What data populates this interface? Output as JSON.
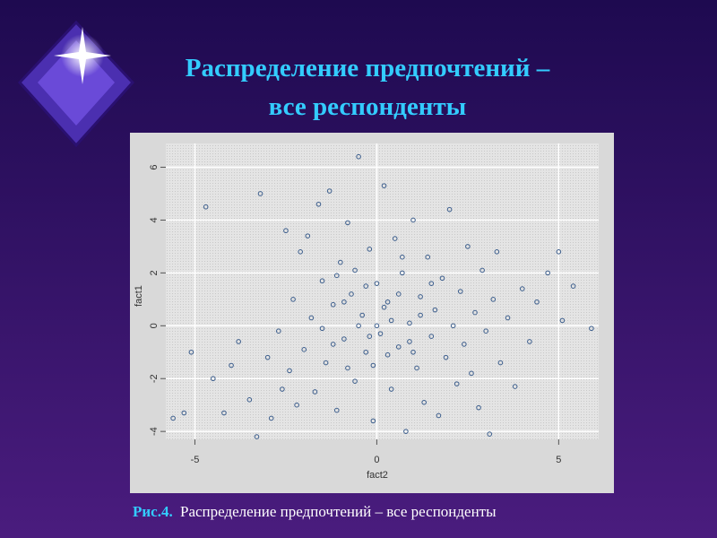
{
  "chart_data": {
    "type": "scatter",
    "title": [
      "Распределение предпочтений –",
      "все респонденты"
    ],
    "x_label": "fact2",
    "y_label": "fact1",
    "xlim": [
      -5.8,
      6.1
    ],
    "ylim": [
      -4.3,
      6.9
    ],
    "xticks": [
      -5,
      0,
      5
    ],
    "yticks": [
      -4,
      -2,
      0,
      2,
      4,
      6
    ],
    "grid": true,
    "color": "#3b5d8c",
    "x": [
      -5.6,
      -5.3,
      -5.1,
      -4.7,
      -4.5,
      -4.2,
      -4.0,
      -3.8,
      -3.5,
      -3.3,
      -3.2,
      -3.0,
      -2.9,
      -2.7,
      -2.6,
      -2.5,
      -2.4,
      -2.3,
      -2.2,
      -2.1,
      -2.0,
      -1.9,
      -1.8,
      -1.7,
      -1.6,
      -1.5,
      -1.4,
      -1.3,
      -1.2,
      -1.1,
      -1.0,
      -0.9,
      -0.8,
      -0.7,
      -0.6,
      -0.5,
      -0.4,
      -0.3,
      -0.2,
      -0.1,
      0.0,
      0.1,
      0.2,
      0.3,
      0.4,
      0.5,
      0.6,
      0.7,
      0.8,
      0.9,
      1.0,
      1.1,
      1.2,
      1.3,
      1.4,
      1.5,
      1.6,
      1.7,
      1.8,
      1.9,
      2.0,
      2.1,
      2.2,
      2.3,
      2.4,
      2.5,
      2.6,
      2.7,
      2.8,
      2.9,
      3.0,
      3.1,
      3.2,
      3.3,
      3.4,
      3.6,
      3.8,
      4.0,
      4.2,
      4.4,
      4.7,
      5.0,
      5.1,
      5.4,
      5.9,
      -0.5,
      0.2,
      -0.3,
      0.6,
      -0.9,
      0.9,
      -1.2,
      0.4,
      -0.1,
      1.2,
      -0.6,
      0.3,
      -1.5,
      1.5,
      0.0,
      -0.2,
      0.7,
      -0.8,
      1.0,
      -1.1
    ],
    "y": [
      -3.5,
      -3.3,
      -1.0,
      4.5,
      -2.0,
      -3.3,
      -1.5,
      -0.6,
      -2.8,
      -4.2,
      5.0,
      -1.2,
      -3.5,
      -0.2,
      -2.4,
      3.6,
      -1.7,
      1.0,
      -3.0,
      2.8,
      -0.9,
      3.4,
      0.3,
      -2.5,
      4.6,
      1.7,
      -1.4,
      5.1,
      0.8,
      -3.2,
      2.4,
      -0.5,
      3.9,
      1.2,
      -2.1,
      6.4,
      0.4,
      -1.0,
      2.9,
      -3.6,
      1.6,
      -0.3,
      5.3,
      0.9,
      -2.4,
      3.3,
      -0.8,
      2.0,
      -4.0,
      0.1,
      4.0,
      -1.6,
      1.1,
      -2.9,
      2.6,
      -0.4,
      0.6,
      -3.4,
      1.8,
      -1.2,
      4.4,
      0.0,
      -2.2,
      1.3,
      -0.7,
      3.0,
      -1.8,
      0.5,
      -3.1,
      2.1,
      -0.2,
      -4.1,
      1.0,
      2.8,
      -1.4,
      0.3,
      -2.3,
      1.4,
      -0.6,
      0.9,
      2.0,
      2.8,
      0.2,
      1.5,
      -0.1,
      0.0,
      0.7,
      1.5,
      1.2,
      0.9,
      -0.6,
      -0.7,
      0.2,
      -1.5,
      0.4,
      2.1,
      -1.1,
      -0.1,
      1.6,
      0.0,
      -0.4,
      2.6,
      -1.6,
      -1.0,
      1.9
    ]
  },
  "caption": {
    "label": "Рис.4.",
    "text": "Распределение предпочтений – все респонденты"
  }
}
